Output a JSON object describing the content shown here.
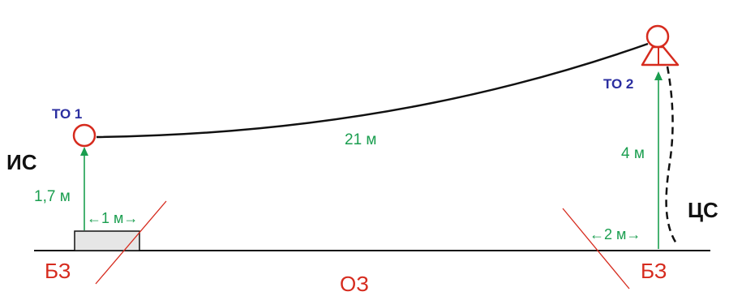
{
  "labels": {
    "to1": "ТО 1",
    "to2": "ТО 2",
    "is": "ИС",
    "cs": "ЦС",
    "height_left": "1,7 м",
    "width_left": "←1 м→",
    "distance": "21 м",
    "height_right": "4 м",
    "width_right": "←2 м→",
    "bz_left": "БЗ",
    "bz_right": "БЗ",
    "oz": "ОЗ"
  },
  "colors": {
    "green": "#1a9e4f",
    "red": "#d62b1e",
    "blue": "#2b2ea0",
    "black": "#111111",
    "box_fill": "#e6e6e6"
  }
}
